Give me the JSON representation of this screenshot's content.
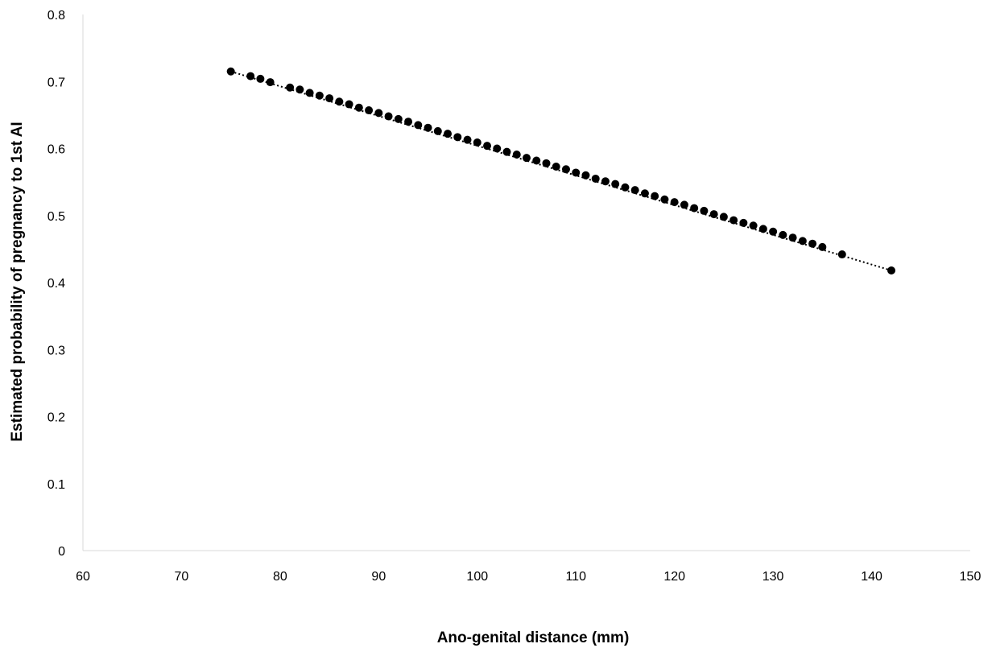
{
  "chart_data": {
    "type": "scatter",
    "title": "",
    "xlabel": "Ano-genital distance (mm)",
    "ylabel": "Estimated probability of pregnancy to 1st AI",
    "xlim": [
      60,
      150
    ],
    "ylim": [
      0,
      0.8
    ],
    "xticks": [
      "60",
      "70",
      "80",
      "90",
      "100",
      "110",
      "120",
      "130",
      "140",
      "150"
    ],
    "yticks": [
      "0",
      "0.1",
      "0.2",
      "0.3",
      "0.4",
      "0.5",
      "0.6",
      "0.7",
      "0.8"
    ],
    "grid": false,
    "legend": "none",
    "trendline": {
      "style": "dotted",
      "from": [
        75,
        0.715
      ],
      "to": [
        142,
        0.418
      ]
    },
    "series": [
      {
        "marker_color": "#000000",
        "points": [
          [
            75,
            0.715
          ],
          [
            77,
            0.708
          ],
          [
            78,
            0.704
          ],
          [
            79,
            0.699
          ],
          [
            81,
            0.691
          ],
          [
            82,
            0.688
          ],
          [
            83,
            0.683
          ],
          [
            84,
            0.679
          ],
          [
            85,
            0.675
          ],
          [
            86,
            0.67
          ],
          [
            87,
            0.666
          ],
          [
            88,
            0.661
          ],
          [
            89,
            0.657
          ],
          [
            90,
            0.653
          ],
          [
            91,
            0.648
          ],
          [
            92,
            0.644
          ],
          [
            93,
            0.64
          ],
          [
            94,
            0.635
          ],
          [
            95,
            0.631
          ],
          [
            96,
            0.626
          ],
          [
            97,
            0.622
          ],
          [
            98,
            0.617
          ],
          [
            99,
            0.613
          ],
          [
            100,
            0.609
          ],
          [
            101,
            0.604
          ],
          [
            102,
            0.6
          ],
          [
            103,
            0.595
          ],
          [
            104,
            0.591
          ],
          [
            105,
            0.586
          ],
          [
            106,
            0.582
          ],
          [
            107,
            0.578
          ],
          [
            108,
            0.573
          ],
          [
            109,
            0.569
          ],
          [
            110,
            0.564
          ],
          [
            111,
            0.56
          ],
          [
            112,
            0.555
          ],
          [
            113,
            0.551
          ],
          [
            114,
            0.547
          ],
          [
            115,
            0.542
          ],
          [
            116,
            0.538
          ],
          [
            117,
            0.533
          ],
          [
            118,
            0.529
          ],
          [
            119,
            0.524
          ],
          [
            120,
            0.52
          ],
          [
            121,
            0.516
          ],
          [
            122,
            0.511
          ],
          [
            123,
            0.507
          ],
          [
            124,
            0.502
          ],
          [
            125,
            0.498
          ],
          [
            126,
            0.493
          ],
          [
            127,
            0.489
          ],
          [
            128,
            0.485
          ],
          [
            129,
            0.48
          ],
          [
            130,
            0.476
          ],
          [
            131,
            0.471
          ],
          [
            132,
            0.467
          ],
          [
            133,
            0.462
          ],
          [
            134,
            0.458
          ],
          [
            135,
            0.453
          ],
          [
            137,
            0.442
          ],
          [
            142,
            0.418
          ]
        ]
      }
    ]
  }
}
